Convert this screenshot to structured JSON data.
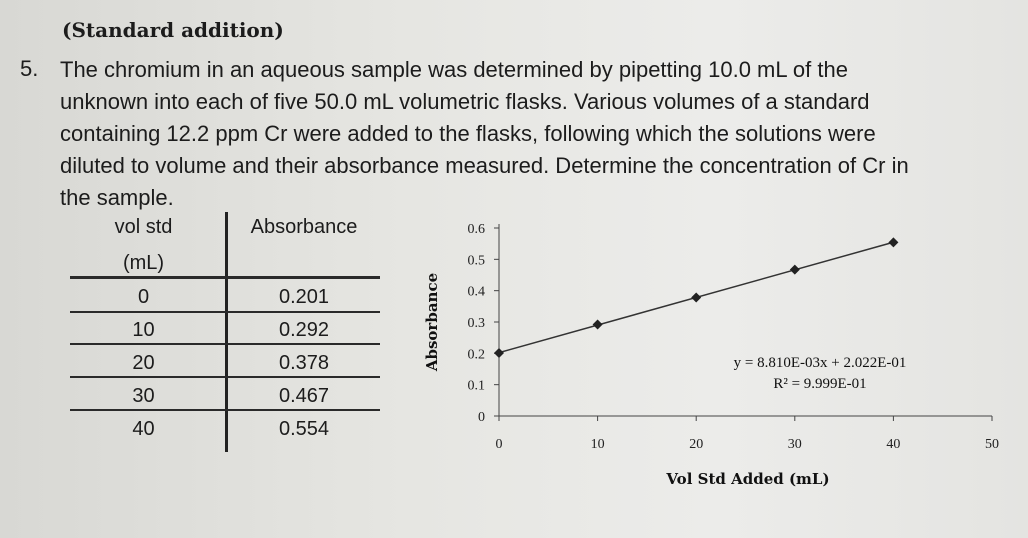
{
  "heading": "(Standard addition)",
  "question": {
    "number": "5.",
    "lines": [
      "The chromium in an aqueous sample was determined by pipetting 10.0 mL of the",
      "unknown into each of five 50.0 mL volumetric flasks. Various volumes of a standard",
      "containing 12.2 ppm Cr were added to the flasks, following which the solutions were",
      "diluted to volume and their absorbance measured. Determine the concentration of Cr in",
      "the sample."
    ]
  },
  "table": {
    "headers": {
      "col1_line1": "vol std",
      "col1_line2": "(mL)",
      "col2": "Absorbance"
    },
    "rows": [
      {
        "vol": "0",
        "abs": "0.201"
      },
      {
        "vol": "10",
        "abs": "0.292"
      },
      {
        "vol": "20",
        "abs": "0.378"
      },
      {
        "vol": "30",
        "abs": "0.467"
      },
      {
        "vol": "40",
        "abs": "0.554"
      }
    ]
  },
  "chart_data": {
    "type": "scatter",
    "x": [
      0,
      10,
      20,
      30,
      40
    ],
    "y": [
      0.201,
      0.292,
      0.378,
      0.467,
      0.554
    ],
    "xlabel": "Vol Std Added (mL)",
    "ylabel": "Absorbance",
    "xlim": [
      0,
      50
    ],
    "ylim": [
      0,
      0.6
    ],
    "x_ticks": [
      "0",
      "10",
      "20",
      "30",
      "40",
      "50"
    ],
    "y_ticks": [
      "0",
      "0.1",
      "0.2",
      "0.3",
      "0.4",
      "0.5",
      "0.6"
    ],
    "trendline": {
      "slope": 0.00881,
      "intercept": 0.2022
    },
    "annotations": [
      "y = 8.810E-03x + 2.022E-01",
      "R² = 9.999E-01"
    ],
    "grid": false,
    "marker_color": "#222222"
  }
}
